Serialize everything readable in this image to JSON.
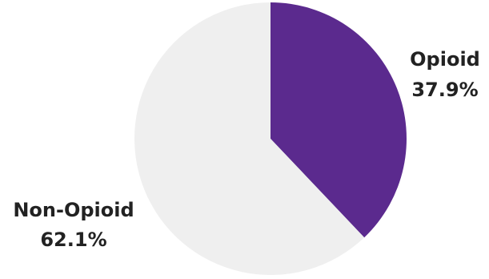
{
  "chart_data": {
    "type": "pie",
    "slices": [
      {
        "label": "Opioid",
        "value": 37.9,
        "value_label": "37.9%",
        "color": "#5b2a8e"
      },
      {
        "label": "Non-Opioid",
        "value": 62.1,
        "value_label": "62.1%",
        "color": "#efefef"
      }
    ],
    "start_angle": "12 o'clock",
    "direction": "clockwise",
    "legend": "none"
  }
}
